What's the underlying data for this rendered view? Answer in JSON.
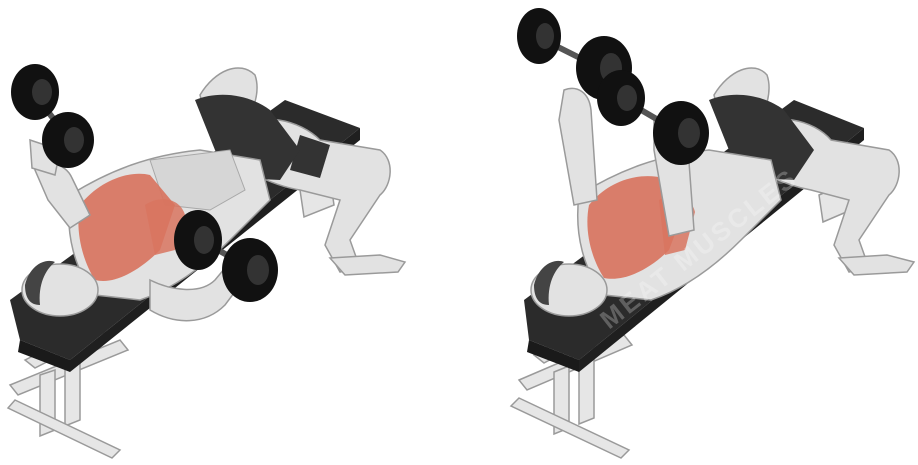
{
  "image": {
    "panels": [
      {
        "name": "start-position"
      },
      {
        "name": "end-position"
      }
    ],
    "watermark_text": "MEAT MUSCLES"
  },
  "colors": {
    "background": "#ffffff",
    "bench_pad": "#2b2b2b",
    "bench_frame": "#e6e6e6",
    "skin": "#e2e2e2",
    "skin_shadow": "#b9b9b9",
    "muscle_highlight": "#d8745f",
    "shorts": "#333333",
    "dumbbell": "#111111"
  }
}
